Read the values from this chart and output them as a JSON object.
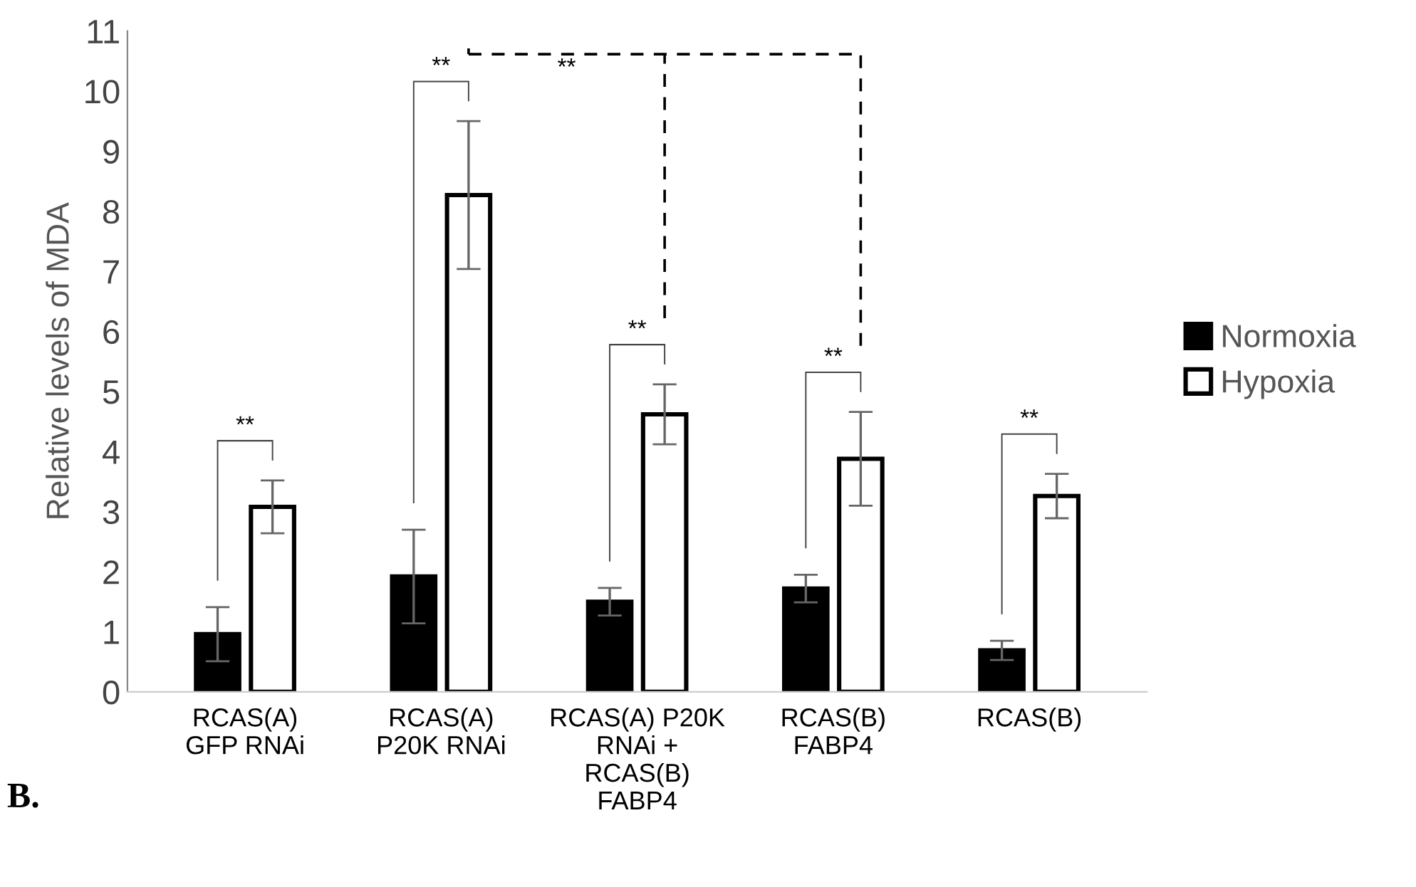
{
  "chart_data": {
    "type": "bar",
    "ylabel": "Relative levels of MDA",
    "categories": [
      "RCAS(A)\nGFP RNAi",
      "RCAS(A)\nP20K RNAi",
      "RCAS(A) P20K\nRNAi +\nRCAS(B)\nFABP4",
      "RCAS(B)\nFABP4",
      "RCAS(B)"
    ],
    "series": [
      {
        "name": "Normoxia",
        "color": "#000000",
        "values": [
          0.96,
          1.92,
          1.5,
          1.72,
          0.69
        ],
        "errors": [
          0.45,
          0.78,
          0.23,
          0.23,
          0.16
        ]
      },
      {
        "name": "Hypoxia",
        "color": "#ffffff",
        "values": [
          3.08,
          8.27,
          4.62,
          3.88,
          3.26
        ],
        "errors": [
          0.44,
          1.23,
          0.5,
          0.78,
          0.37
        ]
      }
    ],
    "ylim": [
      0,
      11
    ],
    "yticks": [
      0,
      1,
      2,
      3,
      4,
      5,
      6,
      7,
      8,
      9,
      10,
      11
    ],
    "grid": false,
    "legend": "right",
    "annotations": [
      "**",
      "**",
      "**",
      "**",
      "**",
      "**",
      "B."
    ]
  }
}
